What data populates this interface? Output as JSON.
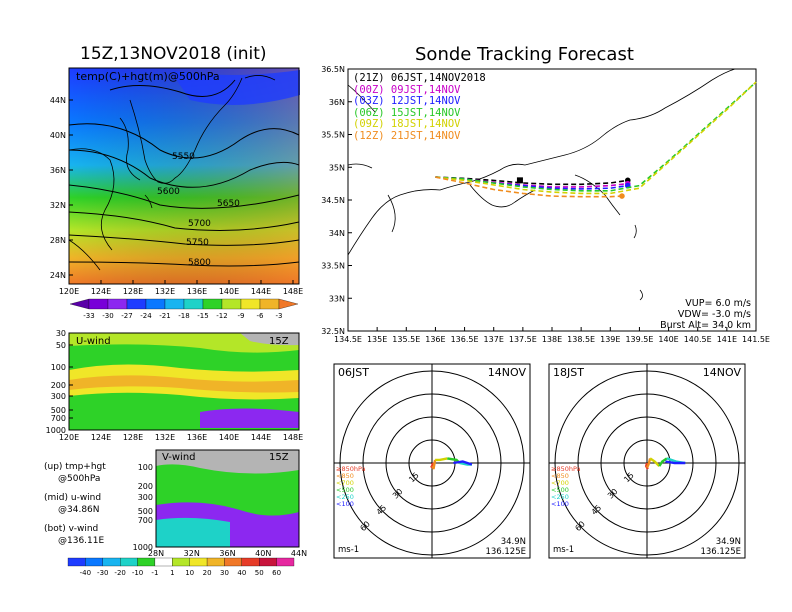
{
  "left": {
    "title": "15Z,13NOV2018 (init)",
    "map_label": "temp(C)+hgt(m)@500hPa",
    "lat_labels": [
      "44N",
      "40N",
      "36N",
      "32N",
      "28N",
      "24N"
    ],
    "lon_labels": [
      "120E",
      "124E",
      "128E",
      "132E",
      "136E",
      "140E",
      "144E",
      "148E"
    ],
    "contours": [
      "5550",
      "5600",
      "5650",
      "5700",
      "5750",
      "5800"
    ],
    "temp_scale": [
      "-33",
      "-30",
      "-27",
      "-24",
      "-21",
      "-18",
      "-15",
      "-12",
      "-9",
      "-6",
      "-3"
    ],
    "temp_colors": [
      "#5a00a8",
      "#7800d8",
      "#8c28f0",
      "#1e3cff",
      "#0a78ff",
      "#18b4f0",
      "#1ed2c8",
      "#2ed228",
      "#b4e628",
      "#f0e628",
      "#f0b428",
      "#f07828"
    ],
    "uwind": {
      "label": "U-wind",
      "time": "15Z",
      "levels": [
        "30",
        "50",
        "100",
        "200",
        "300",
        "500",
        "700",
        "1000"
      ],
      "lon_labels": [
        "120E",
        "124E",
        "128E",
        "132E",
        "136E",
        "140E",
        "144E",
        "148E"
      ]
    },
    "vwind": {
      "label": "V-wind",
      "time": "15Z",
      "levels": [
        "100",
        "200",
        "300",
        "500",
        "700",
        "1000"
      ],
      "lat_labels": [
        "28N",
        "32N",
        "36N",
        "40N",
        "44N"
      ]
    },
    "legend_text": [
      {
        "a": "(up) tmp+hgt",
        "b": "@500hPa"
      },
      {
        "a": "(mid) u-wind",
        "b": "@34.86N"
      },
      {
        "a": "(bot) v-wind",
        "b": "@136.11E"
      }
    ],
    "wind_scale": [
      "-40",
      "-30",
      "-20",
      "-10",
      "-1",
      "1",
      "10",
      "20",
      "30",
      "40",
      "50",
      "60"
    ],
    "wind_colors": [
      "#1e3cff",
      "#0a78ff",
      "#18b4f0",
      "#1ed2c8",
      "#2ed228",
      "#ffffff",
      "#b4e628",
      "#f0e628",
      "#f0b428",
      "#f07828",
      "#e63c28",
      "#c8143c",
      "#e628a0"
    ]
  },
  "main": {
    "title": "Sonde Tracking Forecast",
    "chart_data": {
      "type": "line",
      "title": "Sonde Tracking Forecast",
      "xlim": [
        134.5,
        141.5
      ],
      "ylim": [
        32.5,
        36.5
      ],
      "x_ticks": [
        "134.5E",
        "135E",
        "135.5E",
        "136E",
        "136.5E",
        "137E",
        "137.5E",
        "138E",
        "138.5E",
        "139E",
        "139.5E",
        "140E",
        "140.5E",
        "141E",
        "141.5E"
      ],
      "y_ticks": [
        "36.5N",
        "36N",
        "35.5N",
        "35N",
        "34.5N",
        "34N",
        "33.5N",
        "33N",
        "32.5N"
      ],
      "series": [
        {
          "name": "(21Z) 06JST,14NOV2018",
          "color": "#000000",
          "dash": "5,3",
          "x": [
            136.0,
            136.5,
            137.0,
            137.5,
            138.0,
            138.5,
            139.0,
            139.3
          ],
          "y": [
            34.85,
            34.83,
            34.8,
            34.76,
            34.74,
            34.74,
            34.76,
            34.8
          ]
        },
        {
          "name": "(00Z) 09JST,14NOV",
          "color": "#c800c8",
          "dash": "5,3",
          "x": [
            136.0,
            136.5,
            137.0,
            137.5,
            138.0,
            138.5,
            139.0,
            139.3
          ],
          "y": [
            34.85,
            34.82,
            34.77,
            34.73,
            34.7,
            34.7,
            34.72,
            34.75
          ]
        },
        {
          "name": "(03Z) 12JST,14NOV",
          "color": "#1e1eff",
          "dash": "5,3",
          "x": [
            136.0,
            136.5,
            137.0,
            137.5,
            138.0,
            138.5,
            139.0,
            139.3
          ],
          "y": [
            34.85,
            34.82,
            34.76,
            34.72,
            34.68,
            34.67,
            34.68,
            34.72
          ]
        },
        {
          "name": "(06Z) 15JST,14NOV",
          "color": "#28c828",
          "dash": "5,3",
          "x": [
            136.0,
            136.5,
            137.0,
            137.5,
            138.0,
            138.5,
            139.0,
            139.5,
            140.0,
            140.5,
            141.0,
            141.5
          ],
          "y": [
            34.85,
            34.82,
            34.76,
            34.7,
            34.66,
            34.64,
            34.64,
            34.72,
            35.1,
            35.5,
            35.9,
            36.3
          ]
        },
        {
          "name": "(09Z) 18JST,14NOV",
          "color": "#d2d200",
          "dash": "5,3",
          "x": [
            136.0,
            136.5,
            137.0,
            137.5,
            138.0,
            138.5,
            139.0,
            139.5,
            140.0,
            140.5,
            141.0,
            141.5
          ],
          "y": [
            34.85,
            34.8,
            34.73,
            34.66,
            34.62,
            34.6,
            34.6,
            34.68,
            35.08,
            35.48,
            35.88,
            36.3
          ]
        },
        {
          "name": "(12Z) 21JST,14NOV",
          "color": "#f08c1e",
          "dash": "5,3",
          "x": [
            136.0,
            136.5,
            137.0,
            137.5,
            138.0,
            138.5,
            139.0,
            139.2
          ],
          "y": [
            34.85,
            34.76,
            34.66,
            34.6,
            34.56,
            34.55,
            34.55,
            34.56
          ]
        }
      ]
    },
    "info": [
      "VUP=  6.0  m/s",
      "VDW= -3.0  m/s",
      "Burst Alt=  34.0  km"
    ]
  },
  "hodos": [
    {
      "time": "06JST",
      "date": "14NOV",
      "lat": "34.9N",
      "lon": "136.125E",
      "units": "ms-1",
      "ring_labels": [
        "15",
        "30",
        "45",
        "60"
      ],
      "pressure_legend": [
        {
          "t": "≥850hPa",
          "c": "#e63c28"
        },
        {
          "t": "<850",
          "c": "#f08c1e"
        },
        {
          "t": "<700",
          "c": "#d2d200"
        },
        {
          "t": "<500",
          "c": "#28c828"
        },
        {
          "t": "<250",
          "c": "#1ed2c8"
        },
        {
          "t": "<100",
          "c": "#1e1eff"
        }
      ],
      "trace": [
        {
          "c": "#e63c28",
          "pts": [
            [
              0,
              0
            ],
            [
              0.5,
              -1
            ],
            [
              -0.5,
              -3
            ],
            [
              0.5,
              -2
            ]
          ]
        },
        {
          "c": "#f08c1e",
          "pts": [
            [
              0.5,
              -2
            ],
            [
              1,
              -4
            ],
            [
              2,
              2
            ]
          ]
        },
        {
          "c": "#d2d200",
          "pts": [
            [
              2,
              2
            ],
            [
              5,
              2
            ],
            [
              10,
              3
            ]
          ]
        },
        {
          "c": "#28c828",
          "pts": [
            [
              10,
              3
            ],
            [
              16,
              2
            ],
            [
              18,
              0
            ]
          ]
        },
        {
          "c": "#1ed2c8",
          "pts": [
            [
              18,
              0
            ],
            [
              23,
              -1
            ],
            [
              26,
              -1
            ]
          ]
        },
        {
          "c": "#1e1eff",
          "pts": [
            [
              26,
              -1
            ],
            [
              20,
              1
            ],
            [
              14,
              0
            ]
          ]
        }
      ]
    },
    {
      "time": "18JST",
      "date": "14NOV",
      "lat": "34.9N",
      "lon": "136.125E",
      "units": "ms-1",
      "ring_labels": [
        "15",
        "30",
        "45",
        "60"
      ],
      "pressure_legend": [
        {
          "t": "≥850hPa",
          "c": "#e63c28"
        },
        {
          "t": "<850",
          "c": "#f08c1e"
        },
        {
          "t": "<700",
          "c": "#d2d200"
        },
        {
          "t": "<500",
          "c": "#28c828"
        },
        {
          "t": "<250",
          "c": "#1ed2c8"
        },
        {
          "t": "<100",
          "c": "#1e1eff"
        }
      ],
      "trace": [
        {
          "c": "#e63c28",
          "pts": [
            [
              0,
              0
            ],
            [
              -0.5,
              -2
            ],
            [
              0.5,
              -4
            ],
            [
              0,
              -3
            ]
          ]
        },
        {
          "c": "#f08c1e",
          "pts": [
            [
              0,
              -3
            ],
            [
              1,
              -1
            ],
            [
              2,
              3
            ]
          ]
        },
        {
          "c": "#d2d200",
          "pts": [
            [
              2,
              3
            ],
            [
              5,
              1
            ],
            [
              8,
              -2
            ]
          ]
        },
        {
          "c": "#28c828",
          "pts": [
            [
              8,
              -2
            ],
            [
              10,
              1
            ],
            [
              13,
              3
            ]
          ]
        },
        {
          "c": "#1ed2c8",
          "pts": [
            [
              13,
              3
            ],
            [
              19,
              1
            ],
            [
              25,
              0
            ]
          ]
        },
        {
          "c": "#1e1eff",
          "pts": [
            [
              25,
              0
            ],
            [
              18,
              0
            ],
            [
              12,
              1
            ]
          ]
        }
      ]
    }
  ]
}
